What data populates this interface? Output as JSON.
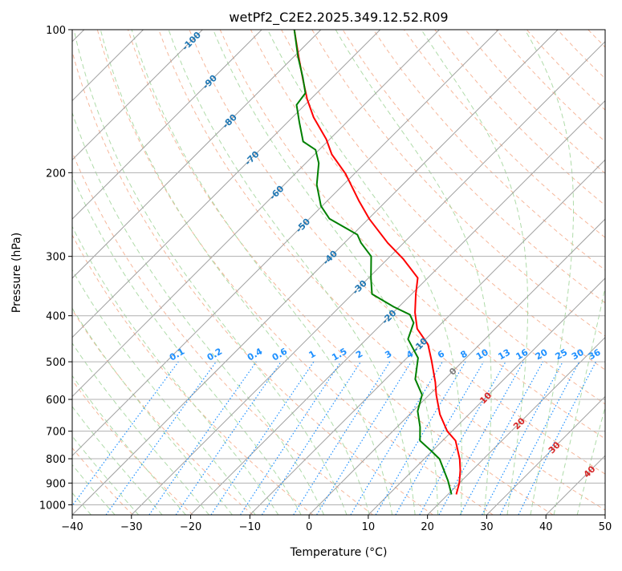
{
  "chart_data": {
    "type": "line",
    "subtype": "skew-t log-p",
    "title": "wetPf2_C2E2.2025.349.12.52.R09",
    "xlabel": "Temperature (°C)",
    "ylabel": "Pressure (hPa)",
    "xlim": [
      -40,
      50
    ],
    "ylim": [
      1050,
      100
    ],
    "x_ticks": [
      -40,
      -30,
      -20,
      -10,
      0,
      10,
      20,
      30,
      40,
      50
    ],
    "y_ticks": [
      100,
      200,
      300,
      400,
      500,
      600,
      700,
      800,
      900,
      1000
    ],
    "grid": true,
    "series": [
      {
        "name": "Temperature",
        "color": "#ff0000",
        "pressure": [
          951,
          900,
          846,
          801,
          733,
          700,
          645,
          587,
          552,
          497,
          460,
          426,
          394,
          360,
          333,
          304,
          281,
          250,
          229,
          201,
          183,
          170,
          153,
          140,
          128,
          114,
          100
        ],
        "values": [
          21.4,
          20.0,
          18.0,
          16.0,
          12.2,
          9.2,
          5.1,
          1.2,
          -1.1,
          -5.4,
          -8.7,
          -13.2,
          -16.3,
          -19.3,
          -21.7,
          -27.3,
          -32.7,
          -39.9,
          -44.7,
          -51.5,
          -57.1,
          -60.6,
          -66.4,
          -70.6,
          -74.4,
          -79.2,
          -84.5
        ]
      },
      {
        "name": "Dewpoint",
        "color": "#008000",
        "pressure": [
          951,
          890,
          801,
          771,
          733,
          686,
          635,
          587,
          544,
          491,
          448,
          414,
          398,
          383,
          360,
          333,
          300,
          281,
          270,
          250,
          235,
          212,
          191,
          179,
          172,
          157,
          144,
          136,
          126,
          114,
          100
        ],
        "values": [
          20.6,
          17.7,
          12.6,
          9.9,
          6.2,
          3.9,
          0.8,
          -1.2,
          -5.0,
          -8.1,
          -13.0,
          -14.8,
          -16.8,
          -20.9,
          -26.7,
          -29.6,
          -33.2,
          -37.2,
          -39.2,
          -46.6,
          -50.2,
          -54.5,
          -57.8,
          -60.6,
          -64.1,
          -67.9,
          -71.4,
          -71.9,
          -75.0,
          -79.3,
          -84.5
        ]
      }
    ],
    "isotherm_labels": [
      {
        "text": "-100",
        "value": -100,
        "color": "#1f77b4"
      },
      {
        "text": "-90",
        "value": -90,
        "color": "#1f77b4"
      },
      {
        "text": "-80",
        "value": -80,
        "color": "#1f77b4"
      },
      {
        "text": "-70",
        "value": -70,
        "color": "#1f77b4"
      },
      {
        "text": "-60",
        "value": -60,
        "color": "#1f77b4"
      },
      {
        "text": "-50",
        "value": -50,
        "color": "#1f77b4"
      },
      {
        "text": "-40",
        "value": -40,
        "color": "#1f77b4"
      },
      {
        "text": "-30",
        "value": -30,
        "color": "#1f77b4"
      },
      {
        "text": "-20",
        "value": -20,
        "color": "#1f77b4"
      },
      {
        "text": "-10",
        "value": -10,
        "color": "#1f77b4"
      },
      {
        "text": "0",
        "value": 0,
        "color": "#808080"
      },
      {
        "text": "10",
        "value": 10,
        "color": "#d62728"
      },
      {
        "text": "20",
        "value": 20,
        "color": "#d62728"
      },
      {
        "text": "30",
        "value": 30,
        "color": "#d62728"
      },
      {
        "text": "40",
        "value": 40,
        "color": "#d62728"
      }
    ],
    "mixing_ratio_labels": [
      "0.1",
      "0.2",
      "0.4",
      "0.6",
      "1",
      "1.5",
      "2",
      "3",
      "4",
      "6",
      "8",
      "10",
      "13",
      "16",
      "20",
      "25",
      "30",
      "36"
    ],
    "colors": {
      "isotherm": "#a0a0a0",
      "dry_adiabat": "#f4a582",
      "moist_adiabat": "#a6d7a0",
      "mixing_ratio": "#1e90ff"
    }
  }
}
